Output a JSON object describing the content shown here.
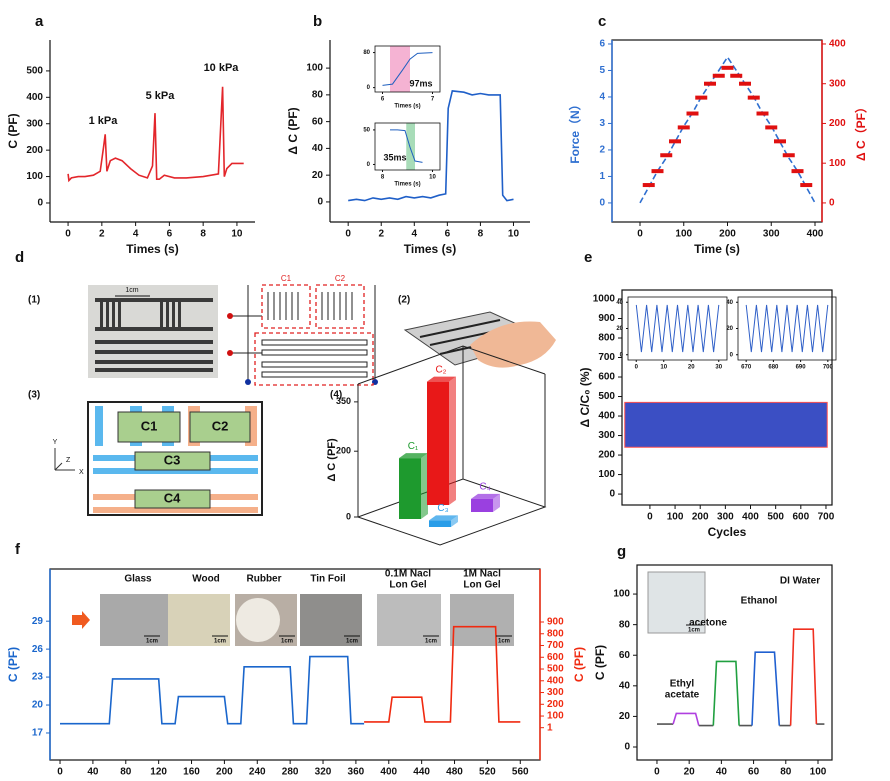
{
  "chart_data": [
    {
      "panel": "a",
      "type": "line",
      "xlabel": "Times (s)",
      "ylabel": "C (PF)",
      "xlim": [
        -1.07,
        11.07
      ],
      "ylim": [
        -72,
        617
      ],
      "xticks": [
        0,
        2,
        4,
        6,
        8,
        10
      ],
      "yticks": [
        0,
        100,
        200,
        300,
        400,
        500
      ],
      "frame": false,
      "annotations": [
        "1 kPa",
        "5 kPa",
        "10 kPa"
      ],
      "series": [
        {
          "color": "#e3262b",
          "x": [
            0,
            0.05,
            0.2,
            0.6,
            1,
            1.5,
            1.9,
            2.1,
            2.2,
            2.3,
            2.5,
            2.8,
            3.2,
            3.7,
            4.2,
            4.7,
            5.0,
            5.15,
            5.25,
            5.4,
            5.7,
            6.3,
            7,
            8,
            8.9,
            9.15,
            9.25,
            9.4,
            9.7,
            10.4
          ],
          "values": [
            110,
            85,
            95,
            100,
            100,
            105,
            120,
            210,
            260,
            120,
            160,
            170,
            160,
            130,
            105,
            95,
            140,
            340,
            90,
            90,
            105,
            95,
            95,
            100,
            110,
            440,
            100,
            130,
            150,
            150
          ]
        }
      ]
    },
    {
      "panel": "b",
      "type": "line",
      "xlabel": "Times (s)",
      "ylabel": "Δ C (PF)",
      "xlim": [
        -1.1,
        11
      ],
      "ylim": [
        -15,
        121
      ],
      "xticks": [
        0,
        2,
        4,
        6,
        8,
        10
      ],
      "yticks": [
        0,
        20,
        40,
        60,
        80,
        100
      ],
      "frame": false,
      "series": [
        {
          "color": "#1f5fc8",
          "x": [
            0,
            0.5,
            1,
            1.5,
            2,
            2.5,
            3,
            3.5,
            4,
            4.5,
            5,
            5.5,
            5.9,
            6.05,
            6.3,
            7,
            7.5,
            8,
            8.5,
            9.2,
            9.35,
            9.6,
            10
          ],
          "values": [
            1,
            2,
            1,
            3,
            2,
            3,
            2,
            4,
            3,
            4,
            3,
            5,
            6,
            70,
            83,
            82,
            80,
            81,
            80,
            80,
            5,
            1,
            2
          ]
        }
      ]
    },
    {
      "type": "line",
      "xlabel": "Times (s)",
      "xlim": [
        5.85,
        7.15
      ],
      "ylim": [
        -10,
        95
      ],
      "xticks": [
        6,
        7
      ],
      "yticks": [
        0,
        80
      ],
      "frame": true,
      "span": [
        6.15,
        6.55
      ],
      "span_color": "#f5b3d3",
      "annotations": [
        "97ms"
      ],
      "series": [
        {
          "color": "#2060c0",
          "x": [
            6,
            6.2,
            6.4,
            6.55,
            6.7,
            7
          ],
          "values": [
            5,
            8,
            40,
            65,
            78,
            80
          ]
        }
      ]
    },
    {
      "type": "line",
      "xlabel": "Times (s)",
      "xlim": [
        7.7,
        10.3
      ],
      "ylim": [
        -8,
        60
      ],
      "xticks": [
        8,
        10
      ],
      "yticks": [
        0,
        50
      ],
      "frame": true,
      "span": [
        8.95,
        9.3
      ],
      "span_color": "#a8dcb8",
      "annotations": [
        "35ms"
      ],
      "series": [
        {
          "color": "#2060c0",
          "x": [
            8.3,
            8.6,
            8.9,
            9.1,
            9.3,
            9.6
          ],
          "values": [
            50,
            50,
            49,
            25,
            5,
            3
          ]
        }
      ]
    },
    {
      "panel": "c",
      "type": "line",
      "xlabel": "Time (s)",
      "ylabel": "Force（N）",
      "y2label": "Δ C（PF）",
      "xlim": [
        -64,
        416
      ],
      "ylim": [
        -0.72,
        6.15
      ],
      "y2lim": [
        -48,
        410
      ],
      "xticks": [
        0,
        100,
        200,
        300,
        400
      ],
      "yticks": [
        0,
        1,
        2,
        3,
        4,
        5,
        6
      ],
      "y2ticks": [
        0,
        100,
        200,
        300,
        400
      ],
      "frame": true,
      "axis_colors": [
        "#2f6fd0",
        "#e01010"
      ],
      "series": [
        {
          "color": "#2f6fd0",
          "style": "dashed",
          "x": [
            0,
            20,
            40,
            60,
            80,
            100,
            120,
            140,
            160,
            180,
            200,
            220,
            240,
            260,
            280,
            300,
            320,
            340,
            360,
            380,
            400
          ],
          "values": [
            0,
            0.6,
            1.2,
            1.7,
            2.3,
            2.9,
            3.4,
            4.0,
            4.5,
            5.0,
            5.5,
            5.0,
            4.5,
            4.0,
            3.4,
            2.9,
            2.3,
            1.7,
            1.2,
            0.6,
            0
          ]
        },
        {
          "color": "#e01010",
          "axis": "y2",
          "style": "segments",
          "x": [
            20,
            40,
            60,
            80,
            100,
            120,
            140,
            160,
            180,
            200,
            220,
            240,
            260,
            280,
            300,
            320,
            340,
            360,
            380
          ],
          "values": [
            45,
            80,
            120,
            155,
            190,
            225,
            265,
            300,
            320,
            340,
            320,
            300,
            265,
            225,
            190,
            155,
            120,
            80,
            45
          ]
        }
      ]
    },
    {
      "type": "bar3d",
      "ylabel": "Δ C (PF)",
      "categories": [
        "C₁",
        "C₂",
        "C₃",
        "C₄"
      ],
      "values": [
        185,
        375,
        20,
        40
      ],
      "colors": [
        "#1e9a2e",
        "#e81818",
        "#2a9de8",
        "#9a40e0"
      ],
      "ylim": [
        0,
        380
      ],
      "yticks": [
        0,
        200,
        350
      ]
    },
    {
      "panel": "e",
      "type": "line",
      "xlabel": "Cycles",
      "ylabel": "Δ C/C₀ (%)",
      "xlim": [
        -111,
        724
      ],
      "ylim": [
        -56,
        1046
      ],
      "xticks": [
        0,
        100,
        200,
        300,
        400,
        500,
        600,
        700
      ],
      "yticks": [
        0,
        100,
        200,
        300,
        400,
        500,
        600,
        700,
        800,
        900,
        1000
      ],
      "frame": true,
      "series": [
        {
          "color": "#3b4fc4",
          "edge_color": "#ff5050",
          "style": "band",
          "x": [
            -100,
            705
          ],
          "values": [
            470,
            470
          ],
          "lower": [
            240,
            240
          ]
        }
      ]
    },
    {
      "type": "line",
      "xlim": [
        -3,
        33
      ],
      "ylim": [
        -4,
        44
      ],
      "xticks": [
        0,
        10,
        20,
        30
      ],
      "yticks": [
        0,
        20,
        40
      ],
      "frame": true,
      "series": [
        {
          "color": "#3060c8",
          "x": [
            0,
            1.875,
            3.75,
            5.625,
            7.5,
            9.375,
            11.25,
            13.125,
            15,
            16.875,
            18.75,
            20.625,
            22.5,
            24.375,
            26.25,
            28.125,
            30
          ],
          "values": [
            38,
            2,
            38,
            2,
            38,
            2,
            38,
            2,
            38,
            2,
            38,
            2,
            38,
            2,
            38,
            2,
            38
          ]
        }
      ]
    },
    {
      "type": "line",
      "xlim": [
        667,
        703
      ],
      "ylim": [
        -4,
        44
      ],
      "xticks": [
        670,
        680,
        690,
        700
      ],
      "yticks": [
        0,
        20,
        40
      ],
      "frame": true,
      "series": [
        {
          "color": "#3060c8",
          "x": [
            670,
            671.875,
            673.75,
            675.625,
            677.5,
            679.375,
            681.25,
            683.125,
            685,
            686.875,
            688.75,
            690.625,
            692.5,
            694.375,
            696.25,
            698.125,
            700
          ],
          "values": [
            38,
            2,
            38,
            2,
            38,
            2,
            38,
            2,
            38,
            2,
            38,
            2,
            38,
            2,
            38,
            2,
            38
          ]
        }
      ]
    },
    {
      "panel": "f",
      "type": "line",
      "xlabel": "Times (s)",
      "ylabel": "C (PF)",
      "y2label": "C (PF)",
      "xlim": [
        -12.2,
        584
      ],
      "ylim": [
        14.1,
        34.6
      ],
      "y2lim": [
        -274,
        1351
      ],
      "xticks": [
        0,
        40,
        80,
        120,
        160,
        200,
        240,
        280,
        320,
        360,
        400,
        440,
        480,
        520,
        560
      ],
      "yticks": [
        17,
        20,
        23,
        26,
        29
      ],
      "y2ticks": [
        1,
        100,
        200,
        300,
        400,
        500,
        600,
        700,
        800,
        900
      ],
      "frame": true,
      "axis_colors": [
        "#1a66cc",
        "#f02a10"
      ],
      "annotations": [
        "Glass",
        "Wood",
        "Rubber",
        "Tin Foil",
        "0.1M Nacl",
        "Lon Gel",
        "1M Nacl",
        "Lon Gel"
      ],
      "scale_bar": "1cm",
      "series": [
        {
          "color": "#1a66cc",
          "x": [
            0,
            60,
            64,
            120,
            124,
            140,
            144,
            200,
            204,
            220,
            224,
            280,
            284,
            300,
            304,
            350,
            354,
            370
          ],
          "values": [
            18,
            18,
            22.8,
            22.8,
            18,
            18,
            20.9,
            20.9,
            18,
            18,
            24.1,
            24.1,
            18,
            18,
            25.2,
            25.2,
            18,
            18
          ]
        },
        {
          "color": "#f02a10",
          "axis": "y2",
          "x": [
            370,
            400,
            404,
            440,
            444,
            475,
            479,
            530,
            534,
            560
          ],
          "values": [
            50,
            50,
            260,
            260,
            50,
            50,
            860,
            860,
            50,
            50
          ]
        }
      ]
    },
    {
      "panel": "g",
      "type": "line",
      "xlabel": "Times (s)",
      "ylabel": "C (PF)",
      "xlim": [
        -12.4,
        108.7
      ],
      "ylim": [
        -8.5,
        119
      ],
      "xticks": [
        0,
        20,
        40,
        60,
        80,
        100
      ],
      "yticks": [
        0,
        20,
        40,
        60,
        80,
        100
      ],
      "frame": true,
      "annotations": [
        "Ethyl",
        "acetate",
        "acetone",
        "Ethanol",
        "DI Water"
      ],
      "scale_bar": "1cm",
      "series": [
        {
          "color": "#555555",
          "x": [
            0,
            10,
            null,
            26,
            35,
            null,
            51,
            59,
            null,
            76,
            83,
            null,
            99,
            104
          ],
          "values": [
            15,
            15,
            null,
            14,
            14,
            null,
            14,
            14,
            null,
            14,
            14,
            null,
            15,
            15
          ]
        },
        {
          "color": "#b040e0",
          "x": [
            10,
            12,
            24,
            26
          ],
          "values": [
            15,
            22,
            22,
            14
          ]
        },
        {
          "color": "#20a040",
          "x": [
            35,
            37,
            49,
            51
          ],
          "values": [
            14,
            56,
            56,
            14
          ]
        },
        {
          "color": "#2060d0",
          "x": [
            59,
            61,
            73,
            76
          ],
          "values": [
            14,
            62,
            62,
            14
          ]
        },
        {
          "color": "#f03020",
          "x": [
            83,
            85,
            97,
            99
          ],
          "values": [
            14,
            77,
            77,
            15
          ]
        }
      ]
    }
  ],
  "panel_d": {
    "panel": "d",
    "sub_labels": [
      "(1)",
      "(2)",
      "(3)",
      "(4)"
    ],
    "scale_bar": "1cm",
    "electrodes": [
      "C1",
      "C2",
      "C3",
      "C4"
    ],
    "axis_labels": [
      "Y",
      "Z",
      "X"
    ]
  }
}
